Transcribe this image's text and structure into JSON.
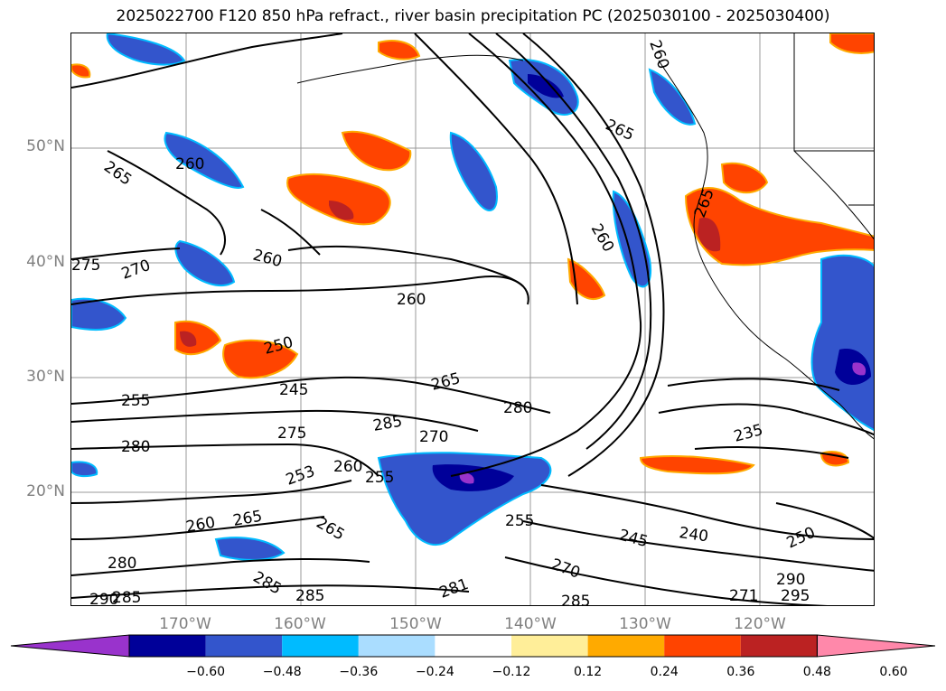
{
  "title": "2025022700 F120 850 hPa refract., river basin precipitation PC (2025030100 - 2025030400)",
  "lat_labels": [
    "50°N",
    "40°N",
    "30°N",
    "20°N"
  ],
  "lon_labels": [
    "170°W",
    "160°W",
    "150°W",
    "140°W",
    "130°W",
    "120°W"
  ],
  "contour_labels": [
    "265",
    "260",
    "260",
    "260",
    "275",
    "270",
    "260",
    "250",
    "255",
    "245",
    "265",
    "280",
    "285",
    "275",
    "270",
    "280",
    "260",
    "255",
    "253",
    "265",
    "260",
    "265",
    "235",
    "255",
    "245",
    "240",
    "250",
    "280",
    "285",
    "270",
    "285",
    "285",
    "290",
    "285",
    "281",
    "290",
    "295",
    "271",
    "265",
    "265",
    "260"
  ],
  "colorbar": {
    "colors": [
      "#9933cc",
      "#000099",
      "#3355cc",
      "#00bbff",
      "#aaddff",
      "#ffffff",
      "#ffee99",
      "#ffaa00",
      "#ff4400",
      "#bb2222",
      "#ff88aa"
    ],
    "tick_labels": [
      "−0.60",
      "−0.48",
      "−0.36",
      "−0.24",
      "−0.12",
      "0.12",
      "0.24",
      "0.36",
      "0.48",
      "0.60"
    ]
  }
}
